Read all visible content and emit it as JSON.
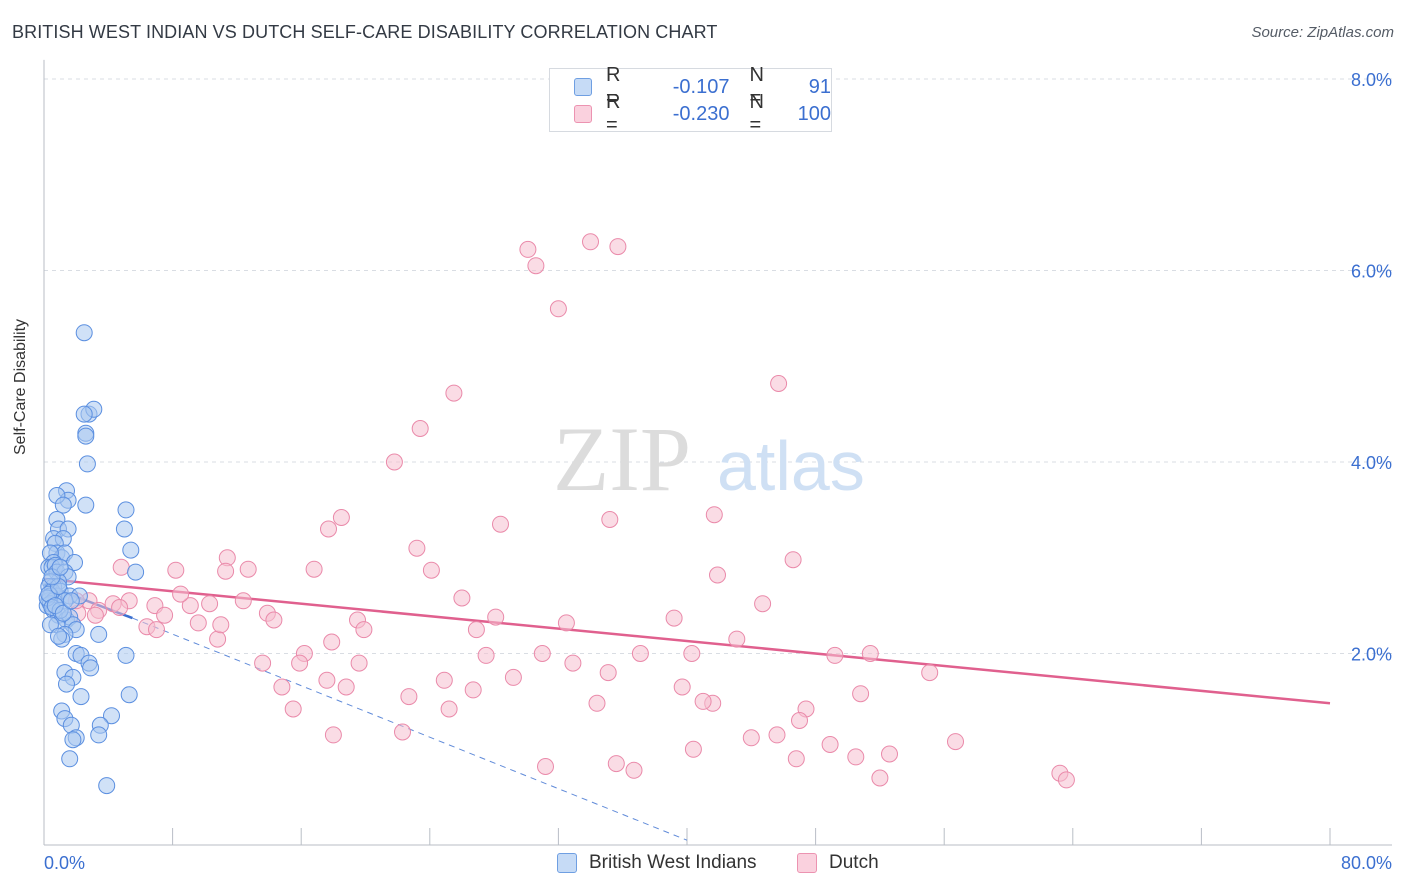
{
  "title": "BRITISH WEST INDIAN VS DUTCH SELF-CARE DISABILITY CORRELATION CHART",
  "source": "Source: ZipAtlas.com",
  "watermark": {
    "zip": "ZIP",
    "atlas": "atlas"
  },
  "legend": {
    "rows": [
      {
        "r_label": "R =",
        "r_value": "-0.107",
        "n_label": "N =",
        "n_value": "91"
      },
      {
        "r_label": "R =",
        "r_value": "-0.230",
        "n_label": "N =",
        "n_value": "100"
      }
    ]
  },
  "colors": {
    "blue_fill": "#a9c8f0",
    "blue_stroke": "#5b8fe0",
    "blue_line": "#3a6fd0",
    "pink_fill": "#f6bfd0",
    "pink_stroke": "#ea8aaa",
    "pink_line": "#e0608e",
    "axis_text": "#3b6fd0"
  },
  "chart_data": {
    "type": "scatter",
    "title": "BRITISH WEST INDIAN VS DUTCH SELF-CARE DISABILITY CORRELATION CHART",
    "xlabel": "",
    "ylabel": "Self-Care Disability",
    "xlim": [
      0,
      80
    ],
    "ylim": [
      0,
      8.2
    ],
    "x_tick_labels": [
      "0.0%",
      "80.0%"
    ],
    "y_ticks": [
      2,
      4,
      6,
      8
    ],
    "y_tick_labels": [
      "2.0%",
      "4.0%",
      "6.0%",
      "8.0%"
    ],
    "grid": true,
    "legend_position": "top-center",
    "series": [
      {
        "name": "British West Indians",
        "color": "#5b8fe0",
        "points": [
          [
            2.5,
            5.35
          ],
          [
            2.8,
            4.5
          ],
          [
            3.1,
            4.55
          ],
          [
            2.5,
            4.5
          ],
          [
            2.6,
            4.3
          ],
          [
            2.6,
            4.27
          ],
          [
            2.7,
            3.98
          ],
          [
            1.4,
            3.7
          ],
          [
            1.5,
            3.6
          ],
          [
            0.8,
            3.65
          ],
          [
            2.6,
            3.55
          ],
          [
            1.2,
            3.55
          ],
          [
            5.1,
            3.5
          ],
          [
            0.8,
            3.4
          ],
          [
            0.9,
            3.3
          ],
          [
            1.5,
            3.3
          ],
          [
            5.0,
            3.3
          ],
          [
            0.6,
            3.2
          ],
          [
            1.2,
            3.2
          ],
          [
            0.7,
            3.15
          ],
          [
            0.8,
            3.05
          ],
          [
            1.1,
            3.0
          ],
          [
            1.3,
            3.05
          ],
          [
            0.4,
            3.05
          ],
          [
            5.4,
            3.08
          ],
          [
            0.6,
            2.95
          ],
          [
            1.9,
            2.95
          ],
          [
            0.3,
            2.9
          ],
          [
            0.5,
            2.9
          ],
          [
            0.7,
            2.92
          ],
          [
            0.8,
            2.85
          ],
          [
            1.3,
            2.85
          ],
          [
            1.5,
            2.8
          ],
          [
            0.9,
            2.75
          ],
          [
            0.4,
            2.75
          ],
          [
            0.6,
            2.7
          ],
          [
            0.3,
            2.7
          ],
          [
            0.5,
            2.65
          ],
          [
            0.8,
            2.6
          ],
          [
            1.0,
            2.65
          ],
          [
            1.6,
            2.6
          ],
          [
            2.2,
            2.6
          ],
          [
            5.7,
            2.85
          ],
          [
            0.3,
            2.55
          ],
          [
            0.4,
            2.6
          ],
          [
            0.6,
            2.55
          ],
          [
            0.2,
            2.5
          ],
          [
            0.4,
            2.52
          ],
          [
            1.3,
            2.55
          ],
          [
            0.6,
            2.45
          ],
          [
            0.9,
            2.4
          ],
          [
            1.4,
            2.35
          ],
          [
            1.6,
            2.38
          ],
          [
            0.8,
            2.3
          ],
          [
            1.8,
            2.3
          ],
          [
            0.4,
            2.3
          ],
          [
            2.0,
            2.25
          ],
          [
            1.3,
            2.2
          ],
          [
            1.1,
            2.15
          ],
          [
            3.4,
            2.2
          ],
          [
            0.9,
            2.18
          ],
          [
            2.0,
            2.0
          ],
          [
            2.3,
            1.98
          ],
          [
            5.1,
            1.98
          ],
          [
            2.8,
            1.9
          ],
          [
            1.3,
            1.8
          ],
          [
            1.8,
            1.75
          ],
          [
            2.9,
            1.85
          ],
          [
            1.4,
            1.68
          ],
          [
            2.3,
            1.55
          ],
          [
            5.3,
            1.57
          ],
          [
            1.1,
            1.4
          ],
          [
            4.2,
            1.35
          ],
          [
            1.3,
            1.32
          ],
          [
            1.7,
            1.25
          ],
          [
            3.5,
            1.25
          ],
          [
            2.0,
            1.12
          ],
          [
            3.4,
            1.15
          ],
          [
            1.8,
            1.1
          ],
          [
            1.6,
            0.9
          ],
          [
            3.9,
            0.62
          ],
          [
            0.2,
            2.58
          ],
          [
            0.3,
            2.62
          ],
          [
            0.5,
            2.48
          ],
          [
            1.0,
            2.45
          ],
          [
            0.7,
            2.5
          ],
          [
            1.2,
            2.42
          ],
          [
            1.7,
            2.55
          ],
          [
            0.9,
            2.7
          ],
          [
            0.5,
            2.8
          ],
          [
            1.0,
            2.9
          ]
        ],
        "trend": {
          "x": [
            0,
            5.5
          ],
          "y": [
            2.72,
            2.37
          ]
        },
        "trend_extension": {
          "x": [
            5.5,
            40
          ],
          "y": [
            2.37,
            0.05
          ]
        }
      },
      {
        "name": "Dutch",
        "color": "#ea8aaa",
        "points": [
          [
            34.0,
            6.3
          ],
          [
            35.7,
            6.25
          ],
          [
            30.1,
            6.22
          ],
          [
            30.6,
            6.05
          ],
          [
            32.0,
            5.6
          ],
          [
            45.7,
            4.82
          ],
          [
            25.5,
            4.72
          ],
          [
            23.4,
            4.35
          ],
          [
            21.8,
            4.0
          ],
          [
            18.5,
            3.42
          ],
          [
            17.7,
            3.3
          ],
          [
            28.4,
            3.35
          ],
          [
            35.2,
            3.4
          ],
          [
            41.7,
            3.45
          ],
          [
            23.2,
            3.1
          ],
          [
            11.4,
            3.0
          ],
          [
            46.6,
            2.98
          ],
          [
            4.8,
            2.9
          ],
          [
            8.2,
            2.87
          ],
          [
            12.7,
            2.88
          ],
          [
            16.8,
            2.88
          ],
          [
            24.1,
            2.87
          ],
          [
            11.3,
            2.86
          ],
          [
            41.9,
            2.82
          ],
          [
            2.8,
            2.55
          ],
          [
            4.3,
            2.52
          ],
          [
            5.3,
            2.55
          ],
          [
            6.9,
            2.5
          ],
          [
            9.1,
            2.5
          ],
          [
            10.3,
            2.52
          ],
          [
            12.4,
            2.55
          ],
          [
            26.0,
            2.58
          ],
          [
            44.7,
            2.52
          ],
          [
            3.4,
            2.45
          ],
          [
            4.7,
            2.48
          ],
          [
            13.9,
            2.42
          ],
          [
            14.3,
            2.35
          ],
          [
            19.5,
            2.35
          ],
          [
            28.1,
            2.38
          ],
          [
            32.5,
            2.32
          ],
          [
            39.2,
            2.37
          ],
          [
            3.2,
            2.4
          ],
          [
            6.4,
            2.28
          ],
          [
            7.0,
            2.25
          ],
          [
            9.6,
            2.32
          ],
          [
            19.9,
            2.25
          ],
          [
            26.9,
            2.25
          ],
          [
            10.8,
            2.15
          ],
          [
            17.9,
            2.12
          ],
          [
            43.1,
            2.15
          ],
          [
            37.1,
            2.0
          ],
          [
            27.5,
            1.98
          ],
          [
            16.2,
            2.0
          ],
          [
            40.3,
            2.0
          ],
          [
            49.2,
            1.98
          ],
          [
            51.4,
            2.0
          ],
          [
            55.1,
            1.8
          ],
          [
            13.6,
            1.9
          ],
          [
            15.9,
            1.9
          ],
          [
            19.6,
            1.9
          ],
          [
            32.9,
            1.9
          ],
          [
            35.1,
            1.8
          ],
          [
            29.2,
            1.75
          ],
          [
            17.6,
            1.72
          ],
          [
            24.9,
            1.72
          ],
          [
            22.7,
            1.55
          ],
          [
            14.8,
            1.65
          ],
          [
            18.8,
            1.65
          ],
          [
            26.7,
            1.62
          ],
          [
            39.7,
            1.65
          ],
          [
            50.8,
            1.58
          ],
          [
            34.4,
            1.48
          ],
          [
            41.6,
            1.48
          ],
          [
            15.5,
            1.42
          ],
          [
            25.2,
            1.42
          ],
          [
            47.4,
            1.42
          ],
          [
            47.0,
            1.3
          ],
          [
            18.0,
            1.15
          ],
          [
            22.3,
            1.18
          ],
          [
            44.0,
            1.12
          ],
          [
            45.6,
            1.15
          ],
          [
            48.9,
            1.05
          ],
          [
            56.7,
            1.08
          ],
          [
            40.4,
            1.0
          ],
          [
            52.6,
            0.95
          ],
          [
            46.8,
            0.9
          ],
          [
            50.5,
            0.92
          ],
          [
            31.2,
            0.82
          ],
          [
            35.6,
            0.85
          ],
          [
            36.7,
            0.78
          ],
          [
            52.0,
            0.7
          ],
          [
            63.2,
            0.75
          ],
          [
            63.6,
            0.68
          ],
          [
            7.5,
            2.4
          ],
          [
            2.1,
            2.42
          ],
          [
            8.5,
            2.62
          ],
          [
            2.0,
            2.55
          ],
          [
            11.0,
            2.3
          ],
          [
            31.0,
            2.0
          ],
          [
            41.0,
            1.5
          ]
        ],
        "trend": {
          "x": [
            0,
            80
          ],
          "y": [
            2.78,
            1.48
          ]
        }
      }
    ]
  }
}
